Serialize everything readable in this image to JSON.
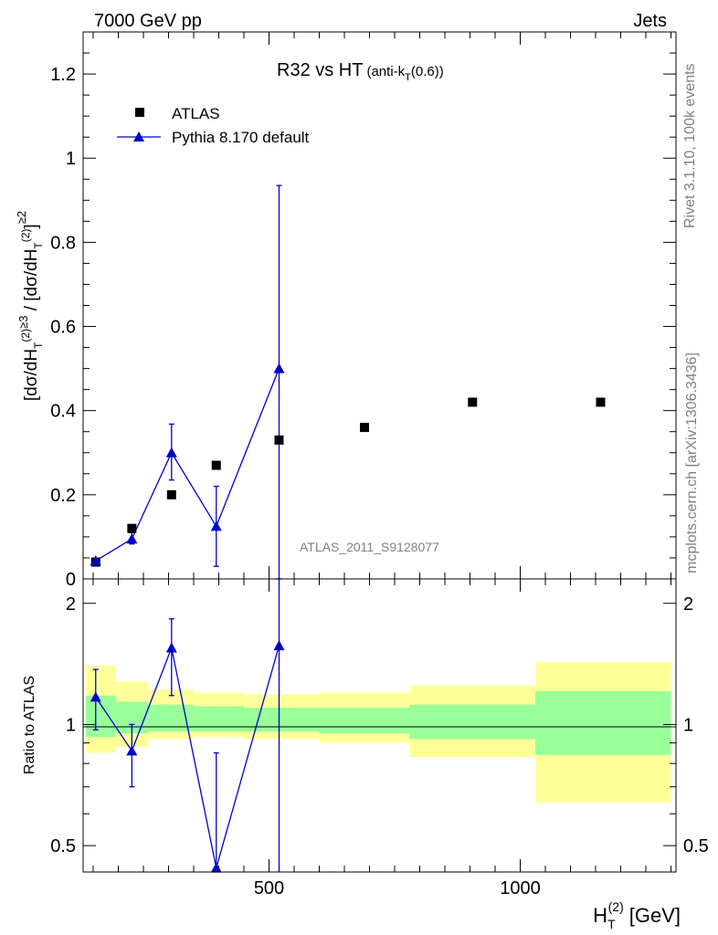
{
  "header": {
    "left": "7000 GeV pp",
    "right": "Jets"
  },
  "side_labels": {
    "upper": "Rivet 3.1.10,  100k events",
    "lower": "mcplots.cern.ch [arXiv:1306.3436]"
  },
  "colors": {
    "mc": "#0000cc",
    "data": "#000000",
    "band_inner": "#99ff99",
    "band_outer": "#ffff99"
  },
  "chart_data": [
    {
      "type": "scatter",
      "title": "R32 vs HT",
      "title_suffix": "(anti-k",
      "title_suffix_sub": "T",
      "title_suffix_end": "(0.6))",
      "ylabel": "[dσ/dH_T^(2)]^≥3 / [dσ/dH_T^(2)]^≥2",
      "annotation": "ATLAS_2011_S9128077",
      "legend_position": "top-left",
      "xlim": [
        130,
        1310
      ],
      "ylim": [
        0,
        1.3
      ],
      "y_ticks": [
        0,
        0.2,
        0.4,
        0.6,
        0.8,
        1,
        1.2
      ],
      "y_tick_labels": [
        "0",
        "0.2",
        "0.4",
        "0.6",
        "0.8",
        "1",
        "1.2"
      ],
      "series": [
        {
          "name": "ATLAS",
          "marker": "square",
          "points": [
            {
              "x": 155,
              "y": 0.04
            },
            {
              "x": 227,
              "y": 0.12
            },
            {
              "x": 306,
              "y": 0.2
            },
            {
              "x": 395,
              "y": 0.27
            },
            {
              "x": 520,
              "y": 0.33
            },
            {
              "x": 690,
              "y": 0.36
            },
            {
              "x": 905,
              "y": 0.42
            },
            {
              "x": 1160,
              "y": 0.42
            }
          ]
        },
        {
          "name": "Pythia 8.170 default",
          "marker": "triangle",
          "points": [
            {
              "x": 155,
              "y": 0.043,
              "yerr": [
                0.038,
                0.048
              ]
            },
            {
              "x": 227,
              "y": 0.095,
              "yerr": [
                0.083,
                0.11
              ]
            },
            {
              "x": 306,
              "y": 0.3,
              "yerr": [
                0.235,
                0.368
              ]
            },
            {
              "x": 395,
              "y": 0.125,
              "yerr": [
                0.03,
                0.22
              ]
            },
            {
              "x": 520,
              "y": 0.5,
              "yerr": [
                0.0,
                0.935
              ]
            }
          ]
        }
      ]
    },
    {
      "type": "line",
      "ylabel": "Ratio to ATLAS",
      "xlabel": "H",
      "xlabel_sub": "T",
      "xlabel_sup": "(2)",
      "xlabel_unit": "[GeV]",
      "yscale": "log",
      "xlim": [
        130,
        1310
      ],
      "ylim": [
        0.43,
        2.3
      ],
      "x_ticks": [
        500,
        1000
      ],
      "x_tick_labels": [
        "500",
        "1000"
      ],
      "y_ticks": [
        0.5,
        1,
        2
      ],
      "y_tick_labels": [
        "0.5",
        "1",
        "2"
      ],
      "reference_line": 1,
      "bands": [
        {
          "x0": 135,
          "x1": 195,
          "inner": [
            0.93,
            1.18
          ],
          "outer": [
            0.85,
            1.4
          ]
        },
        {
          "x0": 195,
          "x1": 260,
          "inner": [
            0.95,
            1.14
          ],
          "outer": [
            0.88,
            1.28
          ]
        },
        {
          "x0": 260,
          "x1": 350,
          "inner": [
            0.96,
            1.12
          ],
          "outer": [
            0.92,
            1.22
          ]
        },
        {
          "x0": 350,
          "x1": 450,
          "inner": [
            0.96,
            1.11
          ],
          "outer": [
            0.93,
            1.2
          ]
        },
        {
          "x0": 450,
          "x1": 600,
          "inner": [
            0.96,
            1.1
          ],
          "outer": [
            0.92,
            1.19
          ]
        },
        {
          "x0": 600,
          "x1": 780,
          "inner": [
            0.95,
            1.1
          ],
          "outer": [
            0.9,
            1.2
          ]
        },
        {
          "x0": 780,
          "x1": 1030,
          "inner": [
            0.92,
            1.12
          ],
          "outer": [
            0.83,
            1.25
          ]
        },
        {
          "x0": 1030,
          "x1": 1300,
          "inner": [
            0.84,
            1.21
          ],
          "outer": [
            0.64,
            1.43
          ]
        }
      ],
      "series": [
        {
          "name": "Pythia 8.170 default",
          "points": [
            {
              "x": 155,
              "y": 1.17,
              "yerr": [
                0.97,
                1.37
              ]
            },
            {
              "x": 227,
              "y": 0.86,
              "yerr": [
                0.7,
                1.0
              ]
            },
            {
              "x": 306,
              "y": 1.55,
              "yerr": [
                1.18,
                1.83
              ]
            },
            {
              "x": 395,
              "y": 0.44,
              "yerr": [
                0.2,
                0.85
              ]
            },
            {
              "x": 520,
              "y": 1.57,
              "yerr": [
                0.0,
                2.8
              ]
            }
          ]
        }
      ]
    }
  ]
}
